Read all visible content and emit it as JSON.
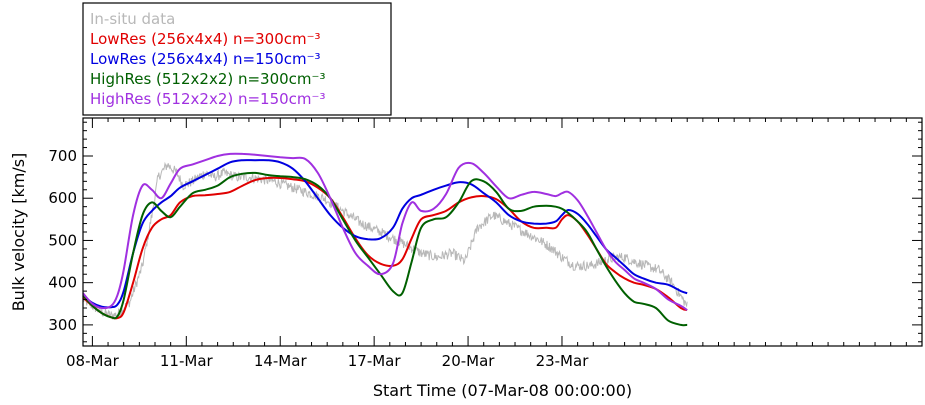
{
  "chart_data": {
    "type": "line",
    "title": "",
    "xlabel": "Start Time (07-Mar-08 00:00:00)",
    "ylabel": "Bulk velocity [km/s]",
    "xlim": [
      0.7,
      27.5
    ],
    "ylim": [
      250,
      790
    ],
    "x_ticks": [
      {
        "x": 1,
        "label": "08-Mar"
      },
      {
        "x": 4,
        "label": "11-Mar"
      },
      {
        "x": 7,
        "label": "14-Mar"
      },
      {
        "x": 10,
        "label": "17-Mar"
      },
      {
        "x": 13,
        "label": "20-Mar"
      },
      {
        "x": 16,
        "label": "23-Mar"
      }
    ],
    "y_ticks": [
      300,
      400,
      500,
      600,
      700
    ],
    "legend_position": "top-left",
    "series": [
      {
        "name": "In-situ data",
        "color": "#b8b8b8",
        "noisy": true,
        "x": [
          0.7,
          1.0,
          1.3,
          1.6,
          1.8,
          2.2,
          2.6,
          2.9,
          3.1,
          3.4,
          3.7,
          3.9,
          4.2,
          4.6,
          4.9,
          5.2,
          5.6,
          6.0,
          6.4,
          6.8,
          7.2,
          7.6,
          8.0,
          8.4,
          8.8,
          9.2,
          9.6,
          9.9,
          10.2,
          10.6,
          11.0,
          11.5,
          12.0,
          12.5,
          12.9,
          13.3,
          13.8,
          14.3,
          14.8,
          15.3,
          15.7,
          16.0,
          16.4,
          16.9,
          17.3,
          17.7,
          18.0,
          18.3,
          18.7,
          19.1,
          19.5,
          20.0
        ],
        "y": [
          360,
          345,
          330,
          322,
          325,
          355,
          440,
          560,
          650,
          680,
          660,
          630,
          640,
          660,
          650,
          660,
          650,
          650,
          645,
          640,
          630,
          620,
          610,
          600,
          580,
          560,
          540,
          530,
          520,
          505,
          490,
          470,
          460,
          470,
          450,
          530,
          560,
          540,
          520,
          500,
          480,
          460,
          440,
          440,
          450,
          460,
          460,
          450,
          440,
          430,
          400,
          345
        ]
      },
      {
        "name": "LowRes (256x4x4) n=300cm⁻³",
        "color": "#e00000",
        "x": [
          0.7,
          1.0,
          1.3,
          1.6,
          1.8,
          2.0,
          2.3,
          2.6,
          2.9,
          3.2,
          3.5,
          3.8,
          4.2,
          4.6,
          5.0,
          5.4,
          5.8,
          6.2,
          6.6,
          7.0,
          7.4,
          7.8,
          8.2,
          8.6,
          9.0,
          9.4,
          9.8,
          10.2,
          10.6,
          10.9,
          11.2,
          11.5,
          11.9,
          12.3,
          12.7,
          13.1,
          13.5,
          13.9,
          14.3,
          14.7,
          15.1,
          15.5,
          15.8,
          16.0,
          16.2,
          16.5,
          16.8,
          17.1,
          17.4,
          17.7,
          18.0,
          18.3,
          18.6,
          19.0,
          19.4,
          19.8,
          20.0
        ],
        "y": [
          365,
          345,
          328,
          318,
          316,
          330,
          400,
          480,
          530,
          550,
          560,
          590,
          605,
          607,
          610,
          615,
          630,
          643,
          648,
          648,
          645,
          640,
          625,
          600,
          555,
          505,
          465,
          445,
          440,
          455,
          505,
          550,
          560,
          570,
          590,
          602,
          605,
          598,
          575,
          545,
          530,
          530,
          530,
          550,
          560,
          545,
          515,
          480,
          445,
          425,
          410,
          400,
          395,
          385,
          365,
          340,
          335
        ]
      },
      {
        "name": "LowRes (256x4x4) n=150cm⁻³",
        "color": "#0000e0",
        "x": [
          0.7,
          1.0,
          1.3,
          1.6,
          1.8,
          2.0,
          2.3,
          2.6,
          2.9,
          3.2,
          3.5,
          3.8,
          4.2,
          4.6,
          5.0,
          5.4,
          5.8,
          6.2,
          6.6,
          7.0,
          7.4,
          7.8,
          8.2,
          8.6,
          9.0,
          9.4,
          9.8,
          10.2,
          10.6,
          10.9,
          11.2,
          11.5,
          11.9,
          12.3,
          12.7,
          13.1,
          13.5,
          13.9,
          14.3,
          14.7,
          15.1,
          15.5,
          15.8,
          16.0,
          16.2,
          16.5,
          16.8,
          17.1,
          17.4,
          17.7,
          18.0,
          18.3,
          18.6,
          19.0,
          19.4,
          19.8,
          20.0
        ],
        "y": [
          370,
          352,
          343,
          342,
          348,
          380,
          470,
          540,
          570,
          590,
          605,
          625,
          640,
          655,
          670,
          685,
          690,
          690,
          690,
          685,
          670,
          640,
          600,
          560,
          530,
          510,
          503,
          505,
          530,
          575,
          600,
          608,
          620,
          630,
          638,
          633,
          612,
          590,
          560,
          545,
          540,
          540,
          545,
          560,
          572,
          563,
          540,
          510,
          480,
          460,
          440,
          420,
          410,
          400,
          395,
          380,
          375
        ]
      },
      {
        "name": "HighRes (512x2x2) n=300cm⁻³",
        "color": "#006000",
        "x": [
          0.7,
          1.0,
          1.3,
          1.6,
          1.8,
          2.0,
          2.3,
          2.6,
          2.9,
          3.2,
          3.5,
          3.8,
          4.2,
          4.6,
          5.0,
          5.4,
          5.8,
          6.2,
          6.6,
          7.0,
          7.4,
          7.8,
          8.2,
          8.6,
          9.0,
          9.4,
          9.8,
          10.2,
          10.6,
          10.9,
          11.2,
          11.5,
          11.9,
          12.3,
          12.7,
          13.1,
          13.5,
          13.9,
          14.3,
          14.7,
          15.1,
          15.5,
          15.8,
          16.0,
          16.2,
          16.5,
          16.8,
          17.1,
          17.4,
          17.7,
          18.0,
          18.3,
          18.6,
          19.0,
          19.4,
          19.8,
          20.0
        ],
        "y": [
          370,
          345,
          328,
          318,
          320,
          360,
          470,
          560,
          590,
          570,
          555,
          580,
          612,
          620,
          630,
          650,
          658,
          660,
          655,
          652,
          650,
          645,
          630,
          600,
          550,
          500,
          460,
          420,
          380,
          375,
          450,
          530,
          550,
          555,
          590,
          640,
          640,
          615,
          575,
          570,
          580,
          582,
          580,
          575,
          565,
          545,
          520,
          480,
          440,
          405,
          375,
          355,
          350,
          340,
          310,
          300,
          300
        ]
      },
      {
        "name": "HighRes (512x2x2) n=150cm⁻³",
        "color": "#a030e0",
        "x": [
          0.7,
          1.0,
          1.3,
          1.6,
          1.8,
          2.0,
          2.3,
          2.6,
          2.9,
          3.2,
          3.5,
          3.8,
          4.2,
          4.6,
          5.0,
          5.4,
          5.8,
          6.2,
          6.6,
          7.0,
          7.4,
          7.8,
          8.2,
          8.6,
          9.0,
          9.4,
          9.8,
          10.2,
          10.6,
          10.9,
          11.2,
          11.5,
          11.9,
          12.3,
          12.7,
          13.1,
          13.5,
          13.9,
          14.3,
          14.7,
          15.1,
          15.5,
          15.8,
          16.0,
          16.2,
          16.5,
          16.8,
          17.1,
          17.4,
          17.7,
          18.0,
          18.3,
          18.6,
          19.0,
          19.4,
          19.8,
          20.0
        ],
        "y": [
          375,
          350,
          340,
          345,
          370,
          430,
          560,
          630,
          620,
          600,
          635,
          670,
          680,
          690,
          700,
          705,
          705,
          703,
          700,
          697,
          695,
          693,
          660,
          600,
          530,
          470,
          440,
          420,
          445,
          540,
          590,
          570,
          575,
          610,
          672,
          683,
          660,
          628,
          600,
          608,
          615,
          610,
          605,
          612,
          615,
          595,
          560,
          520,
          480,
          450,
          430,
          410,
          400,
          385,
          360,
          345,
          335
        ]
      }
    ]
  }
}
